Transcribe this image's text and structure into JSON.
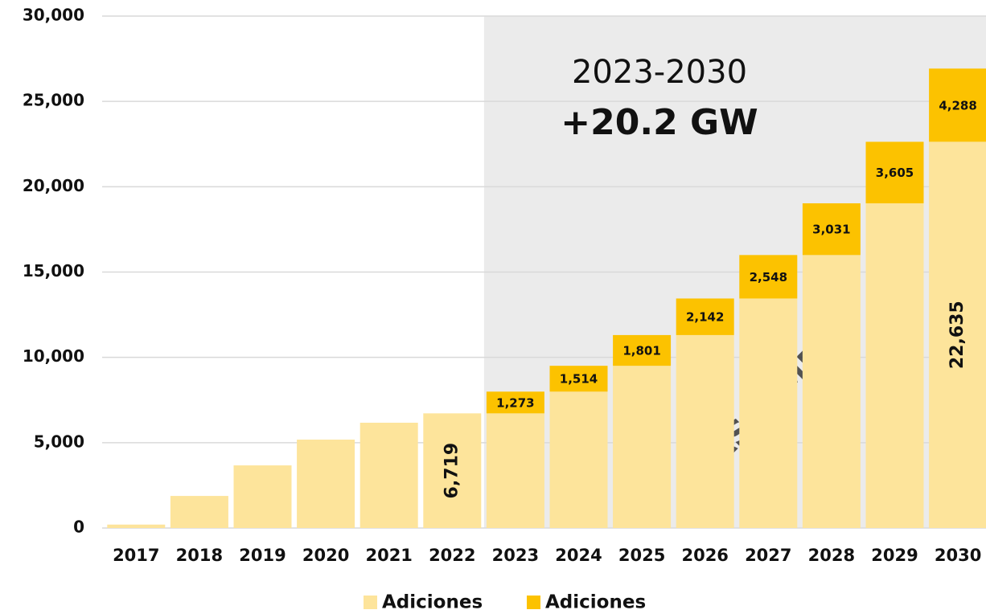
{
  "chart_data": {
    "type": "stacked_bar",
    "annotations": [
      "2023-2030",
      "+20.2 GW"
    ],
    "watermark": "ASOLMEX",
    "categories": [
      "2017",
      "2018",
      "2019",
      "2020",
      "2021",
      "2022",
      "2023",
      "2024",
      "2025",
      "2026",
      "2027",
      "2028",
      "2029",
      "2030"
    ],
    "series": [
      {
        "name": "Adiciones",
        "color": "#fde49b",
        "values": [
          200,
          1880,
          3670,
          5180,
          6170,
          6719,
          6719,
          7992,
          9506,
          11307,
          13449,
          15997,
          19028,
          22635
        ],
        "value_labels": [
          null,
          null,
          null,
          null,
          null,
          "6,719",
          null,
          null,
          null,
          null,
          null,
          null,
          null,
          "22,635"
        ]
      },
      {
        "name": "Adiciones",
        "color": "#fcc200",
        "values": [
          null,
          null,
          null,
          null,
          null,
          null,
          1273,
          1514,
          1801,
          2142,
          2548,
          3031,
          3605,
          4288
        ],
        "value_labels": [
          null,
          null,
          null,
          null,
          null,
          null,
          "1,273",
          "1,514",
          "1,801",
          "2,142",
          "2,548",
          "3,031",
          "3,605",
          "4,288"
        ]
      }
    ],
    "ylim": [
      0,
      30000
    ],
    "yticks": [
      0,
      {
        "value": 5000,
        "label": "5,000"
      },
      {
        "value": 10000,
        "label": "10,000"
      },
      {
        "value": 15000,
        "label": "15,000"
      },
      {
        "value": 20000,
        "label": "20,000"
      },
      {
        "value": 25000,
        "label": "25,000"
      },
      {
        "value": 30000,
        "label": "30,000"
      }
    ],
    "grid": true
  }
}
